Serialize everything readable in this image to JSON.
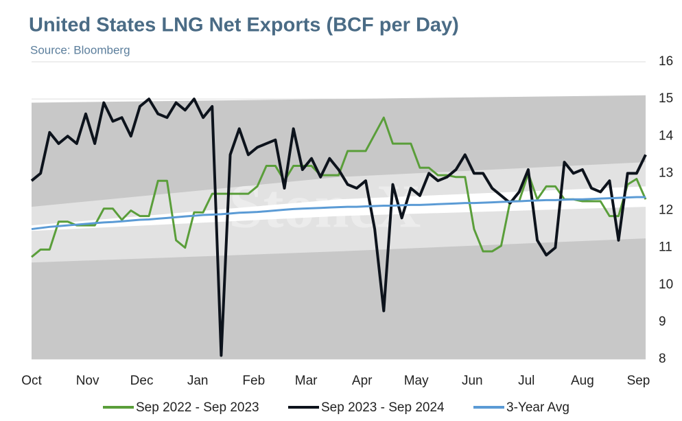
{
  "chart_data": {
    "type": "line",
    "title": "United States LNG Net Exports (BCF per Day)",
    "subtitle": "Source: Bloomberg",
    "watermark": "StoneX",
    "x": [
      0,
      5,
      10,
      15,
      20,
      25,
      30,
      35,
      40,
      45,
      50,
      55,
      60,
      65,
      70,
      75,
      80,
      85,
      90,
      95,
      100,
      105,
      110,
      115,
      120,
      125,
      130,
      135,
      140,
      145,
      150,
      155,
      160,
      165,
      170,
      175,
      180,
      185,
      190,
      195,
      200,
      205,
      210,
      215,
      220,
      225,
      230,
      235,
      240,
      245,
      250,
      255,
      260,
      265,
      270,
      275,
      280,
      285,
      290,
      295,
      300,
      305,
      310,
      315,
      320,
      325,
      330,
      335,
      340
    ],
    "xlim": [
      0,
      340
    ],
    "xticks": [
      {
        "value": 0,
        "label": "Oct"
      },
      {
        "value": 31,
        "label": "Nov"
      },
      {
        "value": 61,
        "label": "Dec"
      },
      {
        "value": 92,
        "label": "Jan"
      },
      {
        "value": 123,
        "label": "Feb"
      },
      {
        "value": 152,
        "label": "Mar"
      },
      {
        "value": 183,
        "label": "Apr"
      },
      {
        "value": 213,
        "label": "May"
      },
      {
        "value": 244,
        "label": "Jun"
      },
      {
        "value": 274,
        "label": "Jul"
      },
      {
        "value": 305,
        "label": "Aug"
      },
      {
        "value": 336,
        "label": "Sep"
      }
    ],
    "ylim": [
      8,
      16
    ],
    "yticks": [
      8,
      9,
      10,
      11,
      12,
      13,
      14,
      15,
      16
    ],
    "grid": true,
    "legend": "bottom",
    "bands": [
      {
        "color": "#c8c8c8",
        "x": [
          0,
          170,
          340
        ],
        "upper": [
          14.9,
          15.0,
          15.1
        ],
        "lower": [
          8,
          8,
          8
        ]
      },
      {
        "color": "#e2e2e2",
        "x": [
          0,
          170,
          340
        ],
        "upper": [
          12.1,
          12.9,
          13.3
        ],
        "lower": [
          10.6,
          10.9,
          11.25
        ]
      },
      {
        "color": "#ffffff",
        "x": [
          0,
          170,
          340
        ],
        "upper": [
          11.6,
          12.3,
          12.65
        ],
        "lower": [
          11.45,
          11.85,
          12.1
        ]
      }
    ],
    "series": [
      {
        "name": "Sep 2022 - Sep 2023",
        "color": "#5a9e3a",
        "width": 3,
        "values": [
          10.75,
          10.95,
          10.95,
          11.7,
          11.7,
          11.6,
          11.6,
          11.6,
          12.05,
          12.05,
          11.75,
          12.0,
          11.85,
          11.85,
          12.8,
          12.8,
          11.2,
          11.0,
          11.95,
          11.95,
          12.45,
          12.45,
          12.45,
          12.45,
          12.45,
          12.65,
          13.2,
          13.2,
          12.8,
          13.2,
          13.2,
          13.2,
          12.95,
          12.95,
          12.95,
          13.6,
          13.6,
          13.6,
          14.05,
          14.5,
          13.8,
          13.8,
          13.8,
          13.15,
          13.15,
          12.95,
          12.95,
          12.9,
          12.9,
          11.5,
          10.9,
          10.9,
          11.05,
          12.25,
          12.25,
          13.0,
          12.3,
          12.65,
          12.65,
          12.3,
          12.3,
          12.25,
          12.25,
          12.25,
          11.85,
          11.85,
          12.7,
          12.85,
          12.3
        ]
      },
      {
        "name": "Sep 2023 - Sep 2024",
        "color": "#0d131c",
        "width": 4,
        "values": [
          12.8,
          13.0,
          14.1,
          13.8,
          14.0,
          13.8,
          14.6,
          13.8,
          14.9,
          14.4,
          14.5,
          14.0,
          14.8,
          15.0,
          14.6,
          14.5,
          14.9,
          14.7,
          15.0,
          14.5,
          14.8,
          8.1,
          13.5,
          14.2,
          13.5,
          13.7,
          13.8,
          13.9,
          12.6,
          14.2,
          13.1,
          13.4,
          12.9,
          13.4,
          13.1,
          12.7,
          12.6,
          12.8,
          11.5,
          9.3,
          12.7,
          11.8,
          12.6,
          12.4,
          13.0,
          12.8,
          12.9,
          13.1,
          13.5,
          13.0,
          13.0,
          12.6,
          12.4,
          12.2,
          12.5,
          13.1,
          11.2,
          10.8,
          11.0,
          13.3,
          13.0,
          13.1,
          12.6,
          12.5,
          12.8,
          11.2,
          13.0,
          13.0,
          13.5
        ]
      },
      {
        "name": "3-Year Avg",
        "color": "#5b9bd5",
        "width": 3,
        "values": [
          11.5,
          11.53,
          11.56,
          11.58,
          11.6,
          11.62,
          11.64,
          11.66,
          11.68,
          11.69,
          11.71,
          11.73,
          11.75,
          11.76,
          11.78,
          11.8,
          11.82,
          11.84,
          11.86,
          11.88,
          11.89,
          11.9,
          11.92,
          11.94,
          11.95,
          11.96,
          11.98,
          12.0,
          12.02,
          12.04,
          12.05,
          12.06,
          12.07,
          12.08,
          12.09,
          12.1,
          12.1,
          12.11,
          12.12,
          12.13,
          12.13,
          12.14,
          12.15,
          12.15,
          12.16,
          12.17,
          12.18,
          12.19,
          12.2,
          12.2,
          12.21,
          12.22,
          12.23,
          12.24,
          12.25,
          12.26,
          12.27,
          12.28,
          12.28,
          12.29,
          12.3,
          12.3,
          12.31,
          12.32,
          12.33,
          12.34,
          12.35,
          12.36,
          12.36
        ]
      }
    ]
  }
}
